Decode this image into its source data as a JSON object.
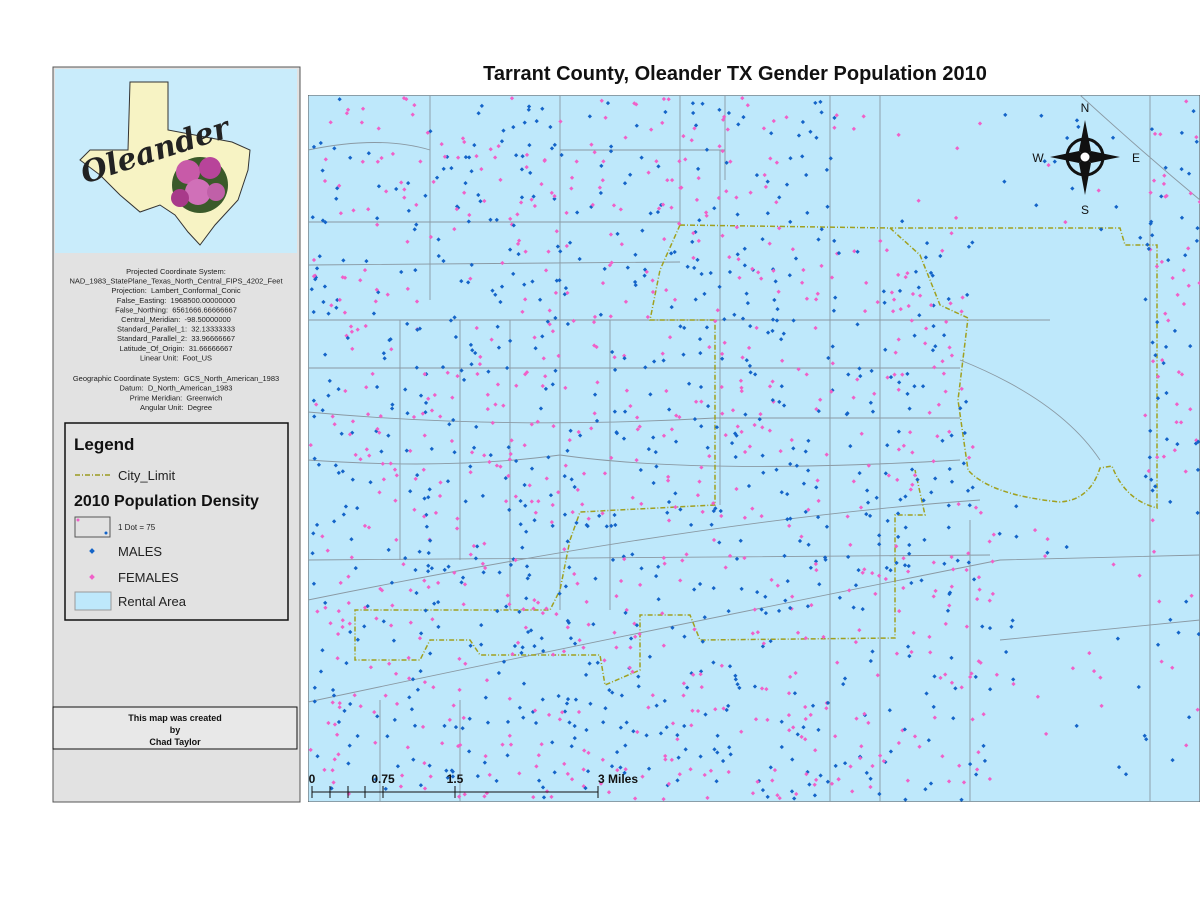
{
  "title": "Tarrant County, Oleander TX Gender Population 2010",
  "logo": {
    "text": "Oleander"
  },
  "projection": {
    "projected": [
      "Projected Coordinate System:",
      "NAD_1983_StatePlane_Texas_North_Central_FIPS_4202_Feet",
      "Projection:  Lambert_Conformal_Conic",
      "False_Easting:  1968500.00000000",
      "False_Northing:  6561666.66666667",
      "Central_Meridian:  -98.50000000",
      "Standard_Parallel_1:  32.13333333",
      "Standard_Parallel_2:  33.96666667",
      "Latitude_Of_Origin:  31.66666667",
      "Linear Unit:  Foot_US"
    ],
    "geographic": [
      "Geographic Coordinate System:  GCS_North_American_1983",
      "Datum:  D_North_American_1983",
      "Prime Meridian:  Greenwich",
      "Angular Unit:  Degree"
    ]
  },
  "legend": {
    "title": "Legend",
    "city_limit": "City_Limit",
    "density_title": "2010 Population Density",
    "dot_note": "1 Dot = 75",
    "males": "MALES",
    "females": "FEMALES",
    "rental_area": "Rental Area"
  },
  "credit": {
    "lines": [
      "This map was created",
      "by",
      "Chad Taylor"
    ]
  },
  "scale_bar": {
    "labels": [
      "0",
      "0.75",
      "1.5",
      "3 Miles"
    ]
  },
  "compass": {
    "n": "N",
    "s": "S",
    "e": "E",
    "w": "W"
  }
}
